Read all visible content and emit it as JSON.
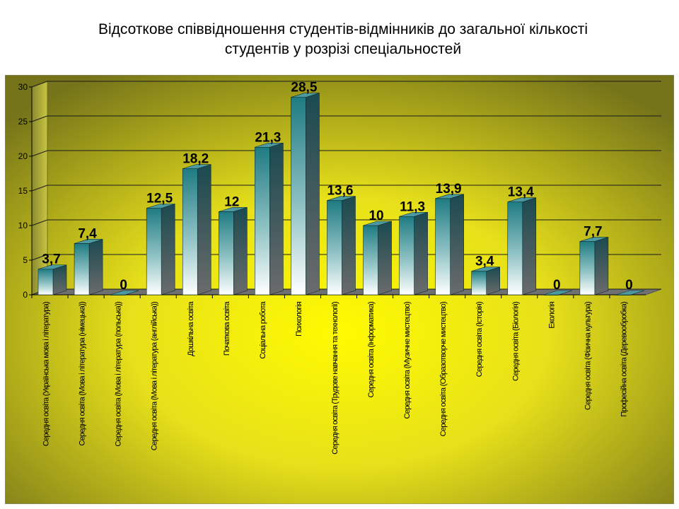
{
  "title": {
    "line1": "Відсоткове співвідношення студентів-відмінників до загальної кількості",
    "line2": "студентів у розрізі спеціальностей"
  },
  "chart_data": {
    "type": "bar",
    "categories": [
      "Середня освіта (Українська мова і література)",
      "Середня освіта (Мова і література (німецька))",
      "Середня освіта (Мова і література (польська))",
      "Середня освіта (Мова і література (англійська))",
      "Дошкільна освіта",
      "Початкова освіта",
      "Соціальна робота",
      "Психологія",
      "Середня освіта (Трудове навчання та технології)",
      "Середня освіта (Інформатика)",
      "Середня освіта (Музичне мистецтво)",
      "Середня освіта (Образотворче мистецтво)",
      "Середня освіта (Історія)",
      "Середня освіта (Біологія)",
      "Екологія",
      "Середня освіта (Фізична культура)",
      "Професійна освіта (Деревообробка)"
    ],
    "values": [
      3.7,
      7.4,
      0,
      12.5,
      18.2,
      12,
      21.3,
      28.5,
      13.6,
      10,
      11.3,
      13.9,
      3.4,
      13.4,
      0,
      7.7,
      0
    ],
    "value_labels": [
      "3,7",
      "7,4",
      "0",
      "12,5",
      "18,2",
      "12",
      "21,3",
      "28,5",
      "13,6",
      "10",
      "11,3",
      "13,9",
      "3,4",
      "13,4",
      "0",
      "7,7",
      "0"
    ],
    "y_ticks": [
      "0",
      "5",
      "10",
      "15",
      "20",
      "25",
      "30"
    ],
    "ylim": [
      0,
      30
    ],
    "grid": true,
    "legend": "none",
    "colors": {
      "bar_front_top": "#1e7b82",
      "bar_front_bottom": "#ffffff",
      "bar_side": "#1f4f55",
      "bar_top": "#4c9aa0",
      "background_center": "#ffff00",
      "background_edge": "#7a7a10"
    }
  }
}
